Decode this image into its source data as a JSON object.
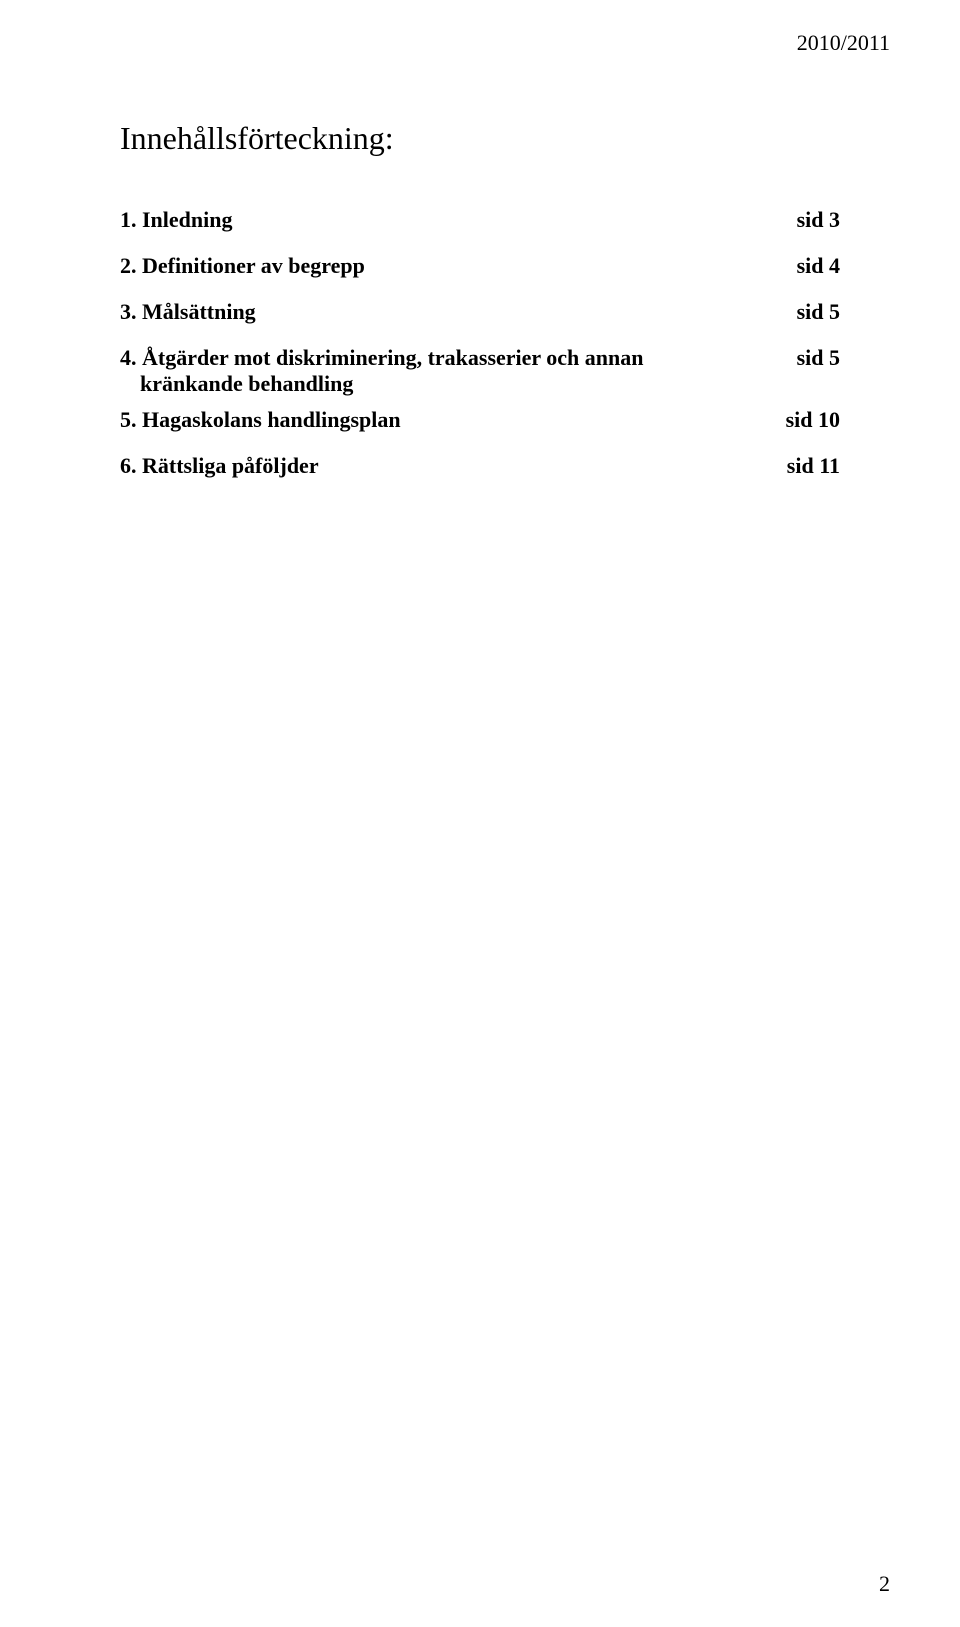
{
  "header": {
    "year": "2010/2011"
  },
  "title": "Innehållsförteckning:",
  "toc": {
    "entries": [
      {
        "num": "1.",
        "label": "Inledning",
        "page": "sid 3"
      },
      {
        "num": "2.",
        "label": "Definitioner av begrepp",
        "page": "sid 4"
      },
      {
        "num": "3.",
        "label": "Målsättning",
        "page": "sid 5"
      },
      {
        "num": "4.",
        "label": "Åtgärder mot diskriminering, trakasserier och annan",
        "sublabel": "kränkande behandling",
        "page": "sid 5"
      },
      {
        "num": "5.",
        "label": "Hagaskolans handlingsplan",
        "page": "sid 10"
      },
      {
        "num": "6.",
        "label": "Rättsliga påföljder",
        "page": "sid 11"
      }
    ]
  },
  "footer": {
    "page_number": "2"
  },
  "style": {
    "background_color": "#ffffff",
    "text_color": "#000000",
    "title_fontsize": 32,
    "body_fontsize": 22
  }
}
